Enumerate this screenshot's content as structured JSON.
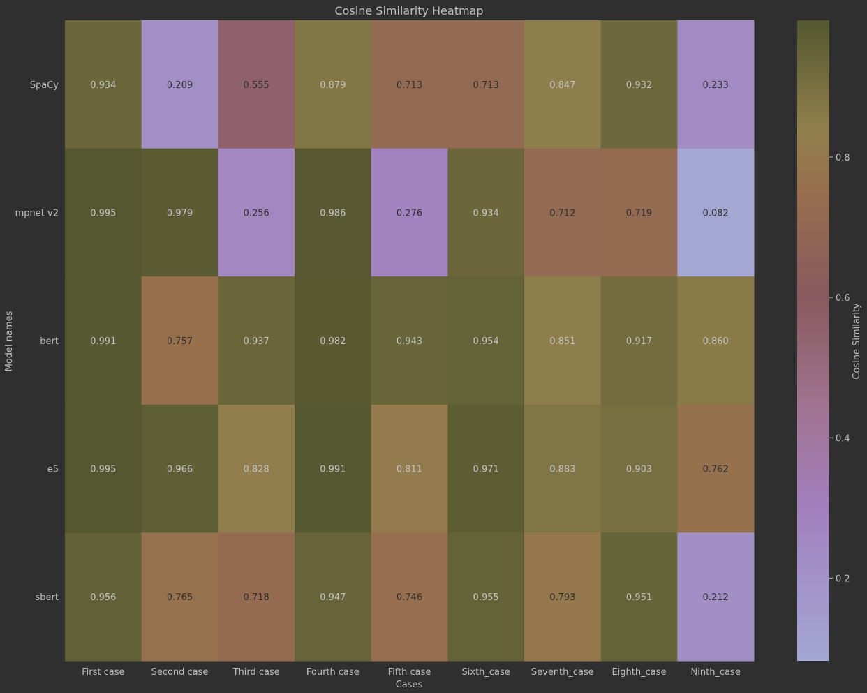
{
  "chart_data": {
    "type": "heatmap",
    "title": "Cosine Similarity Heatmap",
    "xlabel": "Cases",
    "ylabel": "Model names",
    "x_categories": [
      "First case",
      "Second case",
      "Third case",
      "Fourth case",
      "Fifth case",
      "Sixth_case",
      "Seventh_case",
      "Eighth_case",
      "Ninth_case"
    ],
    "y_categories": [
      "SpaCy",
      "mpnet v2",
      "bert",
      "e5",
      "sbert"
    ],
    "values": [
      [
        0.934,
        0.209,
        0.555,
        0.879,
        0.713,
        0.713,
        0.847,
        0.932,
        0.233
      ],
      [
        0.995,
        0.979,
        0.256,
        0.986,
        0.276,
        0.934,
        0.712,
        0.719,
        0.082
      ],
      [
        0.991,
        0.757,
        0.937,
        0.982,
        0.943,
        0.954,
        0.851,
        0.917,
        0.86
      ],
      [
        0.995,
        0.966,
        0.828,
        0.991,
        0.811,
        0.971,
        0.883,
        0.903,
        0.762
      ],
      [
        0.956,
        0.765,
        0.718,
        0.947,
        0.746,
        0.955,
        0.793,
        0.951,
        0.212
      ]
    ],
    "colorbar": {
      "label": "Cosine Similarity",
      "range": [
        0.082,
        0.995
      ],
      "ticks": [
        0.2,
        0.4,
        0.6,
        0.8
      ],
      "tick_labels": [
        "0.2",
        "0.4",
        "0.6",
        "0.8"
      ]
    },
    "colormap": {
      "stops": [
        {
          "value": 0.082,
          "color": "#a3a7d2"
        },
        {
          "value": 0.3,
          "color": "#a27fbd"
        },
        {
          "value": 0.45,
          "color": "#a0738f"
        },
        {
          "value": 0.6,
          "color": "#875a5e"
        },
        {
          "value": 0.75,
          "color": "#976f4e"
        },
        {
          "value": 0.84,
          "color": "#91804c"
        },
        {
          "value": 0.995,
          "color": "#545730"
        }
      ]
    }
  }
}
